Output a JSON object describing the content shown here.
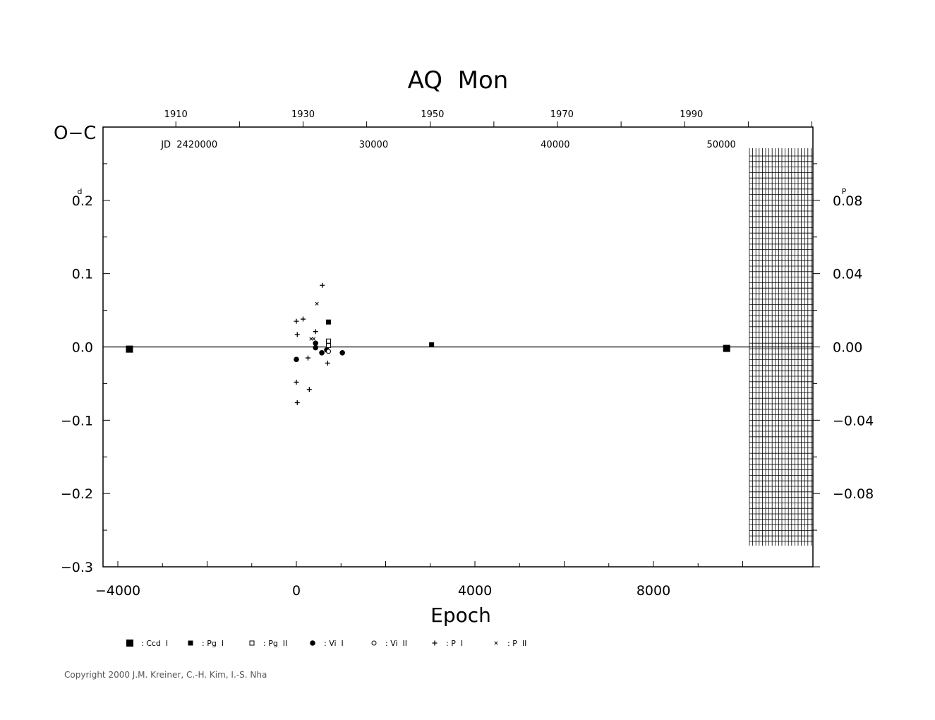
{
  "chart_data": {
    "type": "scatter",
    "title": "AQ  Mon",
    "ylabel": "O−C",
    "xlabel": "Epoch",
    "unit_left": "d",
    "unit_right": "P",
    "xlim": [
      -4300,
      11600
    ],
    "ylim": [
      -0.3,
      0.3
    ],
    "x_ticks": [
      -4000,
      0,
      4000,
      8000
    ],
    "y_ticks": [
      0.2,
      0.1,
      0.0,
      -0.1,
      -0.2,
      -0.3
    ],
    "y_tick_labels": [
      "0.2",
      "0.1",
      "0.0",
      "−0.1",
      "−0.2",
      "−0.3"
    ],
    "right_ticks": [
      0.08,
      0.04,
      0.0,
      -0.04,
      -0.08
    ],
    "right_tick_labels": [
      "0.08",
      "0.04",
      "0.00",
      "−0.04",
      "−0.08"
    ],
    "right_axis_factor": 0.4,
    "year_ticks": [
      1910,
      1930,
      1950,
      1970,
      1990
    ],
    "year_label_epochs": [
      -2700,
      150,
      3050,
      5950,
      8850
    ],
    "jd_labels": [
      {
        "text": "JD  2420000",
        "epoch": -2400
      },
      {
        "text": "30000",
        "epoch": 1730
      },
      {
        "text": "40000",
        "epoch": 5800
      },
      {
        "text": "50000",
        "epoch": 9520
      }
    ],
    "series": [
      {
        "name": "Ccd  I",
        "marker": "square-large",
        "points": [
          [
            -3740,
            -0.003
          ],
          [
            9640,
            -0.002
          ]
        ]
      },
      {
        "name": "Pg  I",
        "marker": "square-small",
        "points": [
          [
            720,
            0.034
          ],
          [
            3030,
            0.003
          ]
        ]
      },
      {
        "name": "Pg  II",
        "marker": "square-open",
        "points": [
          [
            720,
            0.008
          ],
          [
            720,
            0.002
          ]
        ]
      },
      {
        "name": "Vi  I",
        "marker": "circle-filled",
        "points": [
          [
            0,
            -0.017
          ],
          [
            430,
            0.005
          ],
          [
            430,
            -0.001
          ],
          [
            570,
            -0.008
          ],
          [
            680,
            -0.004
          ],
          [
            1030,
            -0.008
          ]
        ]
      },
      {
        "name": "Vi  II",
        "marker": "circle-open",
        "points": [
          [
            720,
            -0.006
          ]
        ]
      },
      {
        "name": "P  I",
        "marker": "plus",
        "points": [
          [
            0,
            0.035
          ],
          [
            150,
            0.038
          ],
          [
            20,
            0.017
          ],
          [
            430,
            0.021
          ],
          [
            580,
            0.084
          ],
          [
            260,
            -0.015
          ],
          [
            700,
            -0.022
          ],
          [
            0,
            -0.048
          ],
          [
            290,
            -0.058
          ],
          [
            20,
            -0.076
          ]
        ]
      },
      {
        "name": "P  II",
        "marker": "cross",
        "points": [
          [
            460,
            0.059
          ],
          [
            330,
            0.011
          ],
          [
            390,
            0.011
          ]
        ]
      }
    ]
  },
  "legend": [
    {
      "label": ": Ccd  I",
      "marker": "square-large"
    },
    {
      "label": ": Pg  I",
      "marker": "square-small"
    },
    {
      "label": ": Pg  II",
      "marker": "square-open"
    },
    {
      "label": ": Vi  I",
      "marker": "circle-filled"
    },
    {
      "label": ": Vi  II",
      "marker": "circle-open"
    },
    {
      "label": ": P  I",
      "marker": "plus"
    },
    {
      "label": ": P  II",
      "marker": "cross"
    }
  ],
  "copyright": "Copyright 2000 J.M. Kreiner, C.-H. Kim, I.-S. Nha"
}
